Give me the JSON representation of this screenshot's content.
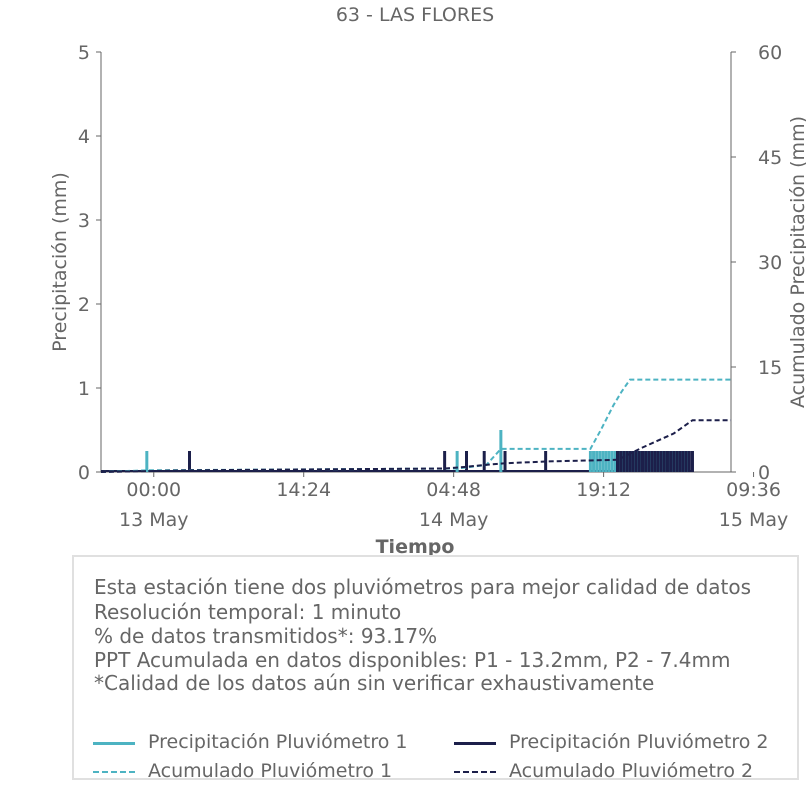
{
  "chart_data": {
    "type": "bar",
    "title": "63 - LAS FLORES",
    "xlabel": "Tiempo",
    "ylabel": "Precipitación (mm)",
    "y2label": "Acumulado Precipitación (mm)",
    "ylim": [
      0,
      5
    ],
    "y2lim": [
      0,
      60
    ],
    "yticks": [
      "0",
      "1",
      "2",
      "3",
      "4",
      "5"
    ],
    "y2ticks": [
      "0",
      "15",
      "30",
      "45",
      "60"
    ],
    "xticks": [
      {
        "time": "00:00",
        "date": "13 May"
      },
      {
        "time": "14:24",
        "date": ""
      },
      {
        "time": "04:48",
        "date": "14 May"
      },
      {
        "time": "19:12",
        "date": ""
      },
      {
        "time": "09:36",
        "date": "15 May"
      }
    ],
    "x_unit": "hours since 12 May 18:56",
    "xlim": [
      0,
      60.5
    ],
    "series": [
      {
        "name": "Precipitación Pluviómetro 1",
        "color": "#4db3c2",
        "axis": "left",
        "kind": "bar",
        "x": [
          4.4,
          34.2,
          38.4,
          47.0,
          47.3,
          47.6,
          47.9,
          48.2,
          48.5,
          48.8,
          49.1,
          49.4,
          49.7,
          50.0,
          50.3,
          50.6,
          50.9,
          51.2,
          51.5,
          51.8,
          52.1,
          52.4,
          52.7,
          53.0,
          53.3,
          53.6,
          53.9,
          54.2,
          54.5,
          54.8,
          55.1,
          55.4,
          55.7,
          56.0,
          56.3
        ],
        "values": [
          0.25,
          0.25,
          0.5,
          0.25,
          0.25,
          0.25,
          0.25,
          0.25,
          0.25,
          0.25,
          0.25,
          0.25,
          0.25,
          0.25,
          0.25,
          0.25,
          0.25,
          0.25,
          0.25,
          0.25,
          0.25,
          0.25,
          0.25,
          0.25,
          0.25,
          0.25,
          0.25,
          0.25,
          0.25,
          0.25,
          0.25,
          0.25,
          0.25,
          0.25,
          0.25
        ]
      },
      {
        "name": "Precipitación Pluviómetro 2",
        "color": "#1c1f4a",
        "axis": "left",
        "kind": "bar",
        "x": [
          8.5,
          33.0,
          35.1,
          36.8,
          38.8,
          42.7,
          49.6,
          49.9,
          50.2,
          50.5,
          50.8,
          51.1,
          51.4,
          51.7,
          52.0,
          52.3,
          52.6,
          52.9,
          53.2,
          53.5,
          53.8,
          54.1,
          54.4,
          54.7,
          55.0,
          55.3,
          55.6,
          55.9,
          56.2,
          56.5,
          56.8
        ],
        "values": [
          0.25,
          0.25,
          0.25,
          0.25,
          0.25,
          0.25,
          0.25,
          0.25,
          0.25,
          0.25,
          0.25,
          0.25,
          0.25,
          0.25,
          0.25,
          0.25,
          0.25,
          0.25,
          0.25,
          0.25,
          0.25,
          0.25,
          0.25,
          0.25,
          0.25,
          0.25,
          0.25,
          0.25,
          0.25,
          0.25,
          0.25
        ]
      },
      {
        "name": "Acumulado Pluviómetro 1",
        "color": "#4db3c2",
        "axis": "right",
        "kind": "dashed",
        "x": [
          0,
          4.4,
          34.2,
          37.0,
          38.4,
          47.0,
          48.0,
          49.2,
          50.0,
          50.8,
          60.5
        ],
        "values": [
          0,
          0.25,
          0.5,
          1.0,
          3.3,
          3.3,
          6.0,
          9.5,
          11.5,
          13.2,
          13.2
        ]
      },
      {
        "name": "Acumulado Pluviómetro 2",
        "color": "#1c1f4a",
        "axis": "right",
        "kind": "dashed",
        "x": [
          0,
          8.5,
          33.0,
          35.1,
          36.8,
          38.8,
          42.7,
          49.6,
          52.0,
          55.0,
          56.8,
          60.5
        ],
        "values": [
          0,
          0.25,
          0.5,
          0.75,
          1.0,
          1.25,
          1.5,
          1.75,
          3.5,
          5.5,
          7.4,
          7.4
        ]
      }
    ]
  },
  "info": {
    "line1": "Esta estación tiene dos pluviómetros para mejor calidad de datos",
    "line2": "Resolución temporal: 1 minuto",
    "line3": "% de datos transmitidos*: 93.17%",
    "line4": "PPT Acumulada en datos disponibles: P1 - 13.2mm, P2 - 7.4mm",
    "line5": "*Calidad de los datos aún sin verificar exhaustivamente"
  },
  "legend": {
    "p1_label": "Precipitación Pluviómetro 1",
    "p2_label": "Precipitación Pluviómetro 2",
    "a1_label": "Acumulado Pluviómetro 1",
    "a2_label": "Acumulado Pluviómetro 2"
  }
}
